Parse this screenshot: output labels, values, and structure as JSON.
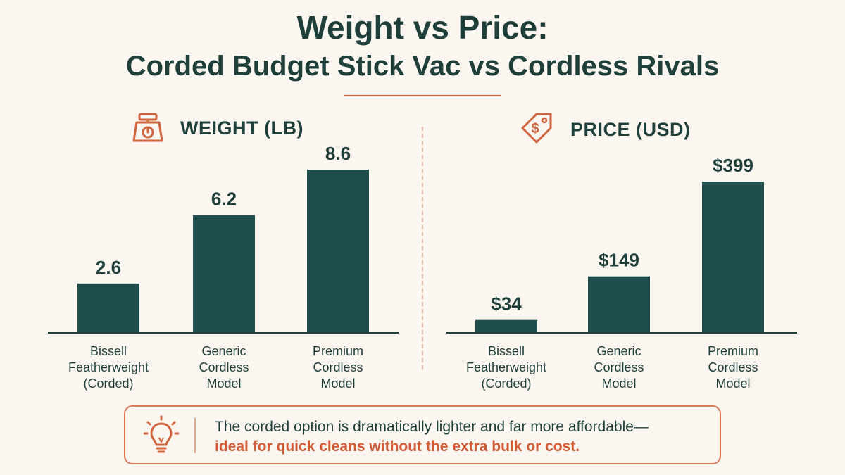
{
  "title_line1": "Weight vs Price:",
  "title_line2": "Corded Budget Stick Vac vs Cordless Rivals",
  "colors": {
    "bar": "#1e4d4b",
    "accent": "#d0643e",
    "text": "#1f3f3b"
  },
  "icons": {
    "weight": "scale-icon",
    "price": "price-tag-icon",
    "callout": "lightbulb-icon"
  },
  "callout": {
    "line1": "The corded option is dramatically lighter and far more affordable—",
    "line2": "ideal for quick cleans without the extra bulk or cost."
  },
  "chart_data": [
    {
      "type": "bar",
      "title": "WEIGHT (LB)",
      "categories": [
        [
          "Bissell",
          "Featherweight",
          "(Corded)"
        ],
        [
          "Generic",
          "Cordless",
          "Model"
        ],
        [
          "Premium",
          "Cordless",
          "Model"
        ]
      ],
      "values": [
        2.6,
        6.2,
        8.6
      ],
      "value_labels": [
        "2.6",
        "6.2",
        "8.6"
      ],
      "ylim": [
        0,
        8.6
      ],
      "grid": false
    },
    {
      "type": "bar",
      "title": "PRICE (USD)",
      "categories": [
        [
          "Bissell",
          "Featherweight",
          "(Corded)"
        ],
        [
          "Generic",
          "Cordless",
          "Model"
        ],
        [
          "Premium",
          "Cordless",
          "Model"
        ]
      ],
      "values": [
        34,
        149,
        399
      ],
      "value_labels": [
        "$34",
        "$149",
        "$399"
      ],
      "ylim": [
        0,
        399
      ],
      "grid": false
    }
  ]
}
